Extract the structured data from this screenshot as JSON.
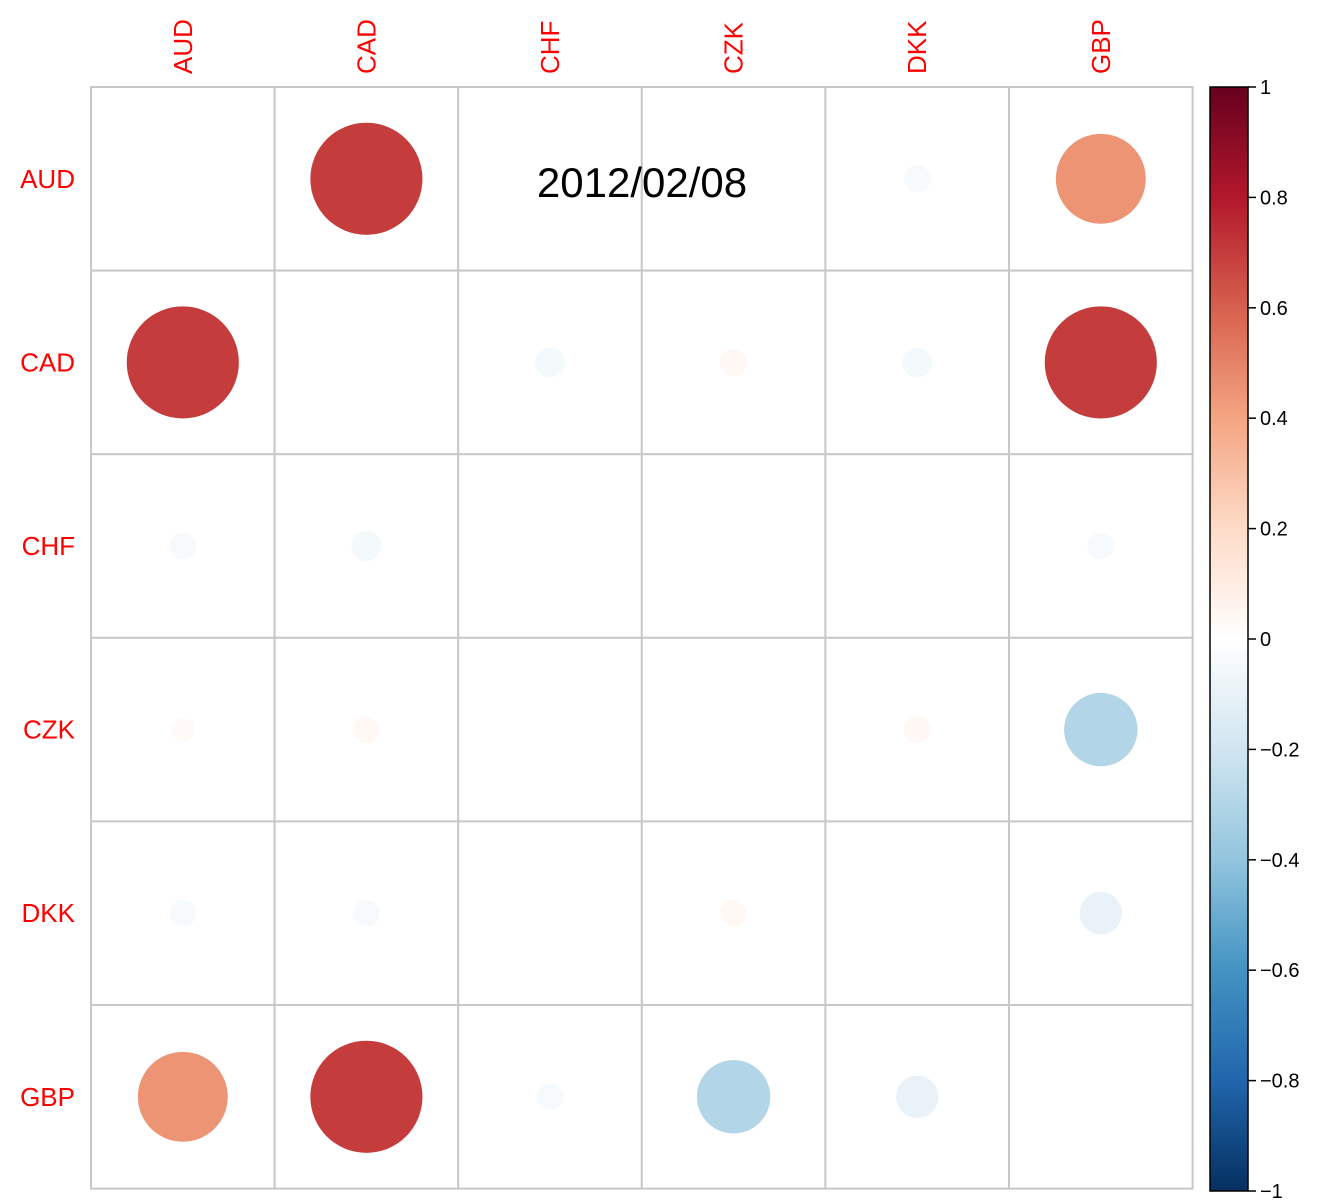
{
  "chart_data": {
    "type": "heatmap",
    "subtype": "correlation-circles",
    "title": "2012/02/08",
    "labels": [
      "AUD",
      "CAD",
      "CHF",
      "CZK",
      "DKK",
      "GBP"
    ],
    "matrix": [
      [
        0,
        0.7,
        0,
        0,
        -0.04,
        0.45
      ],
      [
        0.7,
        0,
        -0.05,
        0.04,
        -0.05,
        0.7
      ],
      [
        -0.04,
        -0.05,
        0,
        0,
        0,
        -0.04
      ],
      [
        0.03,
        0.04,
        0,
        0,
        0.04,
        -0.3
      ],
      [
        -0.04,
        -0.04,
        0,
        0.04,
        0,
        -0.1
      ],
      [
        0.45,
        0.7,
        -0.04,
        -0.3,
        -0.1,
        0
      ]
    ],
    "colorbar": {
      "min": -1,
      "max": 1,
      "ticks": [
        "1",
        "0.8",
        "0.6",
        "0.4",
        "0.2",
        "0",
        "−0.2",
        "−0.4",
        "−0.6",
        "−0.8",
        "−1"
      ],
      "palette": [
        "#053061",
        "#2166AC",
        "#4393C3",
        "#92C5DE",
        "#D1E5F0",
        "#FFFFFF",
        "#FDDBC7",
        "#F4A582",
        "#D6604D",
        "#B2182B",
        "#67001F"
      ]
    },
    "label_color": "#FF0000",
    "grid_color": "#C8C8C8"
  }
}
